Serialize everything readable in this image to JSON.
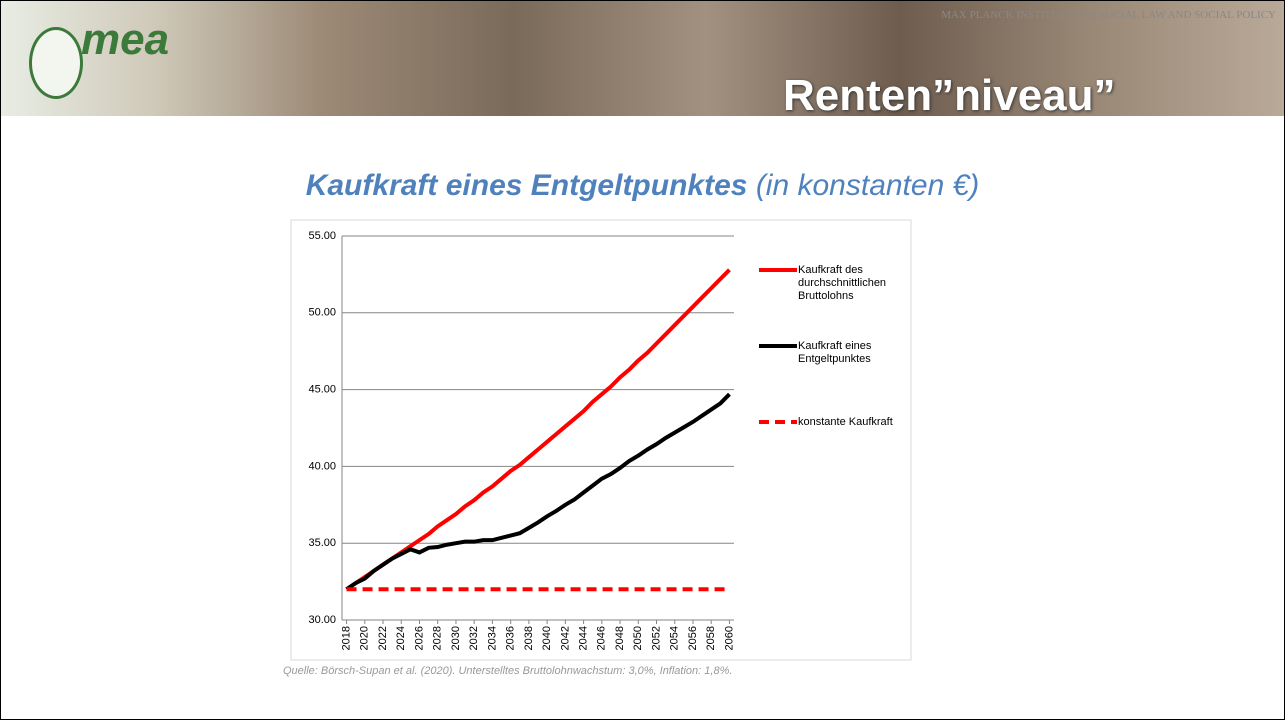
{
  "header": {
    "institute": "MAX PLANCK INSTITUTE FOR SOCIAL LAW AND SOCIAL POLICY",
    "logo": "mea",
    "title": "Renten”niveau”"
  },
  "heading": {
    "main": "Kaufkraft eines Entgeltpunktes",
    "sub": "(in konstanten €)"
  },
  "chart_data": {
    "type": "line",
    "x": [
      2018,
      2019,
      2020,
      2021,
      2022,
      2023,
      2024,
      2025,
      2026,
      2027,
      2028,
      2029,
      2030,
      2031,
      2032,
      2033,
      2034,
      2035,
      2036,
      2037,
      2038,
      2039,
      2040,
      2041,
      2042,
      2043,
      2044,
      2045,
      2046,
      2047,
      2048,
      2049,
      2050,
      2051,
      2052,
      2053,
      2054,
      2055,
      2056,
      2057,
      2058,
      2059,
      2060
    ],
    "xlim": [
      2017.5,
      2060.5
    ],
    "xticks": [
      2018,
      2020,
      2022,
      2024,
      2026,
      2028,
      2030,
      2032,
      2034,
      2036,
      2038,
      2040,
      2042,
      2044,
      2046,
      2048,
      2050,
      2052,
      2054,
      2056,
      2058,
      2060
    ],
    "ylim": [
      30,
      55
    ],
    "yticks": [
      {
        "value": 30,
        "label": "30.00"
      },
      {
        "value": 35,
        "label": "35.00"
      },
      {
        "value": 40,
        "label": "40.00"
      },
      {
        "value": 45,
        "label": "45.00"
      },
      {
        "value": 50,
        "label": "50.00"
      },
      {
        "value": 55,
        "label": "55.00"
      }
    ],
    "grid": true,
    "legend": "right",
    "series": [
      {
        "name": "Kaufkraft des durchschnittlichen Bruttolohns",
        "color": "#ff0000",
        "dash": false,
        "values": [
          32.0,
          32.4,
          32.8,
          33.2,
          33.6,
          34.0,
          34.4,
          34.8,
          35.2,
          35.6,
          36.1,
          36.5,
          36.9,
          37.4,
          37.8,
          38.3,
          38.7,
          39.2,
          39.7,
          40.1,
          40.6,
          41.1,
          41.6,
          42.1,
          42.6,
          43.1,
          43.6,
          44.2,
          44.7,
          45.2,
          45.8,
          46.3,
          46.9,
          47.4,
          48.0,
          48.6,
          49.2,
          49.8,
          50.4,
          51.0,
          51.6,
          52.2,
          52.8
        ]
      },
      {
        "name": "Kaufkraft eines Entgeltpunktes",
        "color": "#000000",
        "dash": false,
        "values": [
          32.0,
          32.4,
          32.7,
          33.2,
          33.6,
          34.0,
          34.3,
          34.6,
          34.4,
          34.7,
          34.75,
          34.9,
          35.0,
          35.1,
          35.1,
          35.2,
          35.2,
          35.35,
          35.5,
          35.65,
          36.0,
          36.35,
          36.75,
          37.1,
          37.5,
          37.85,
          38.3,
          38.75,
          39.2,
          39.5,
          39.9,
          40.35,
          40.7,
          41.1,
          41.45,
          41.85,
          42.2,
          42.55,
          42.9,
          43.3,
          43.7,
          44.1,
          44.7
        ]
      },
      {
        "name": "konstante Kaufkraft",
        "color": "#ff0000",
        "dash": true,
        "values": [
          32,
          32,
          32,
          32,
          32,
          32,
          32,
          32,
          32,
          32,
          32,
          32,
          32,
          32,
          32,
          32,
          32,
          32,
          32,
          32,
          32,
          32,
          32,
          32,
          32,
          32,
          32,
          32,
          32,
          32,
          32,
          32,
          32,
          32,
          32,
          32,
          32,
          32,
          32,
          32,
          32,
          32,
          32
        ]
      }
    ],
    "source": "Quelle: Börsch-Supan et al. (2020). Unterstelltes Bruttolohnwachstum: 3,0%, Inflation: 1,8%."
  }
}
